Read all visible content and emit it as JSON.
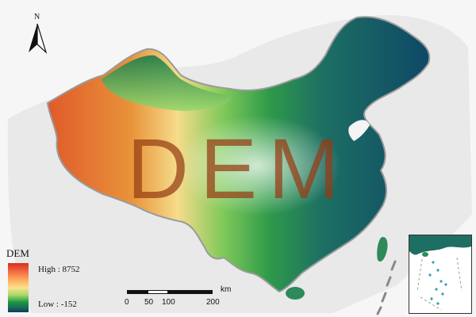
{
  "overlay_title": "DEM",
  "north_arrow": {
    "label": "N",
    "icon": "north-arrow-icon"
  },
  "legend": {
    "title": "DEM",
    "high_label": "High : 8752",
    "low_label": "Low : -152",
    "colors": [
      "#d7301f",
      "#fdae61",
      "#fee08b",
      "#1a9641",
      "#0b3d5c"
    ]
  },
  "scale_bar": {
    "labels": [
      "0",
      "50",
      "100",
      "200"
    ],
    "unit": "km"
  },
  "inset": {
    "name": "south-china-sea-inset"
  }
}
